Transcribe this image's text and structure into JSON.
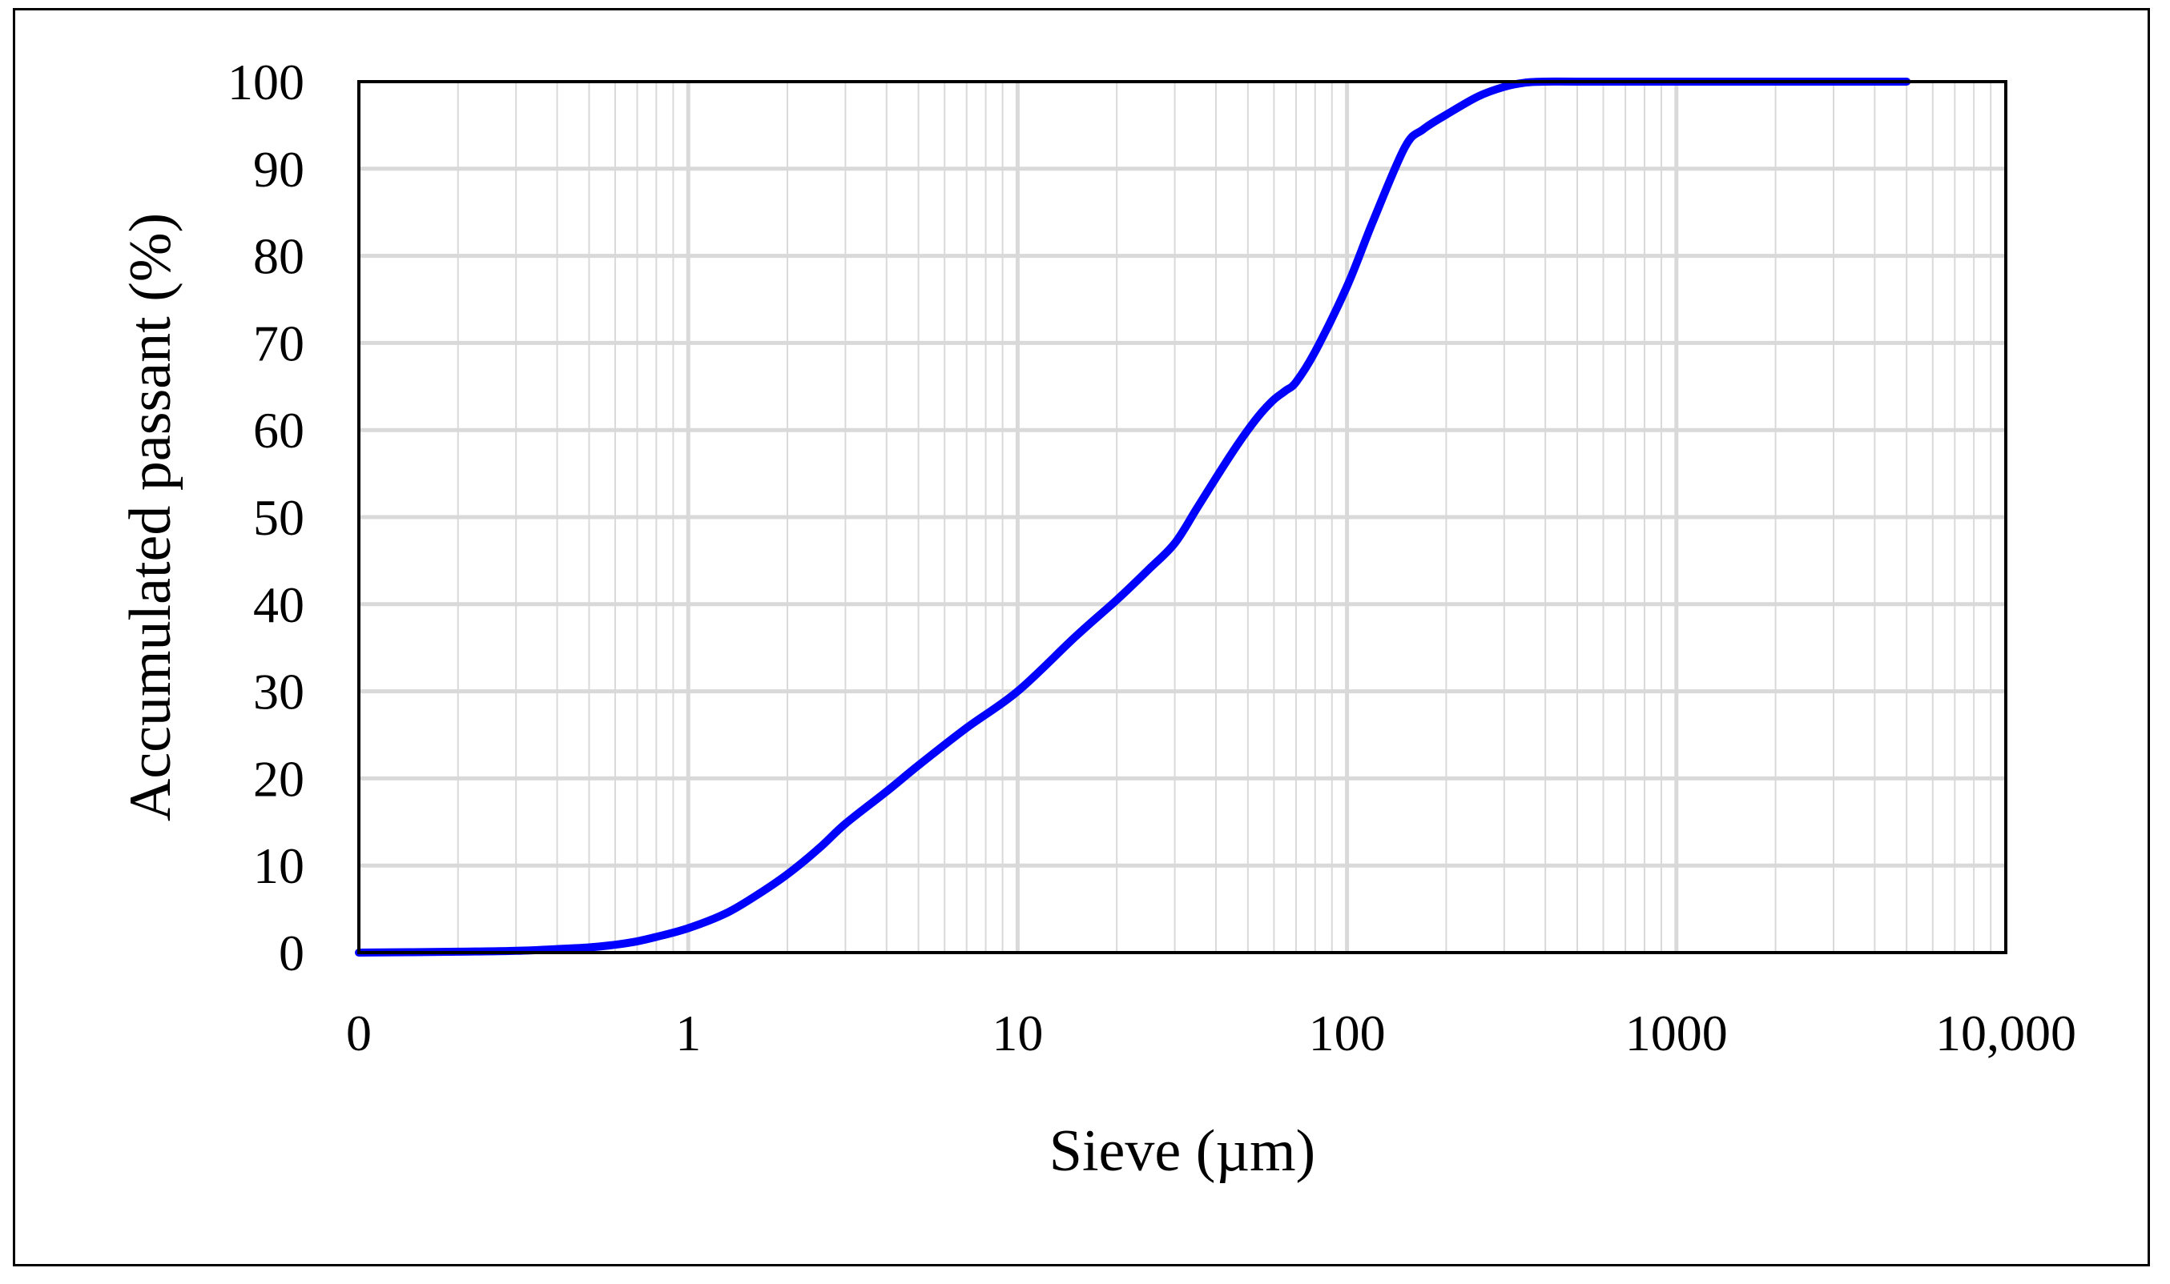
{
  "chart_data": {
    "type": "line",
    "title": "",
    "xlabel": "Sieve (µm)",
    "ylabel": "Accumulated passant (%)",
    "x_scale": "log",
    "xlim": [
      0.1,
      10000
    ],
    "ylim": [
      0,
      100
    ],
    "x_tick_labels": [
      "0",
      "1",
      "10",
      "100",
      "1000",
      "10,000"
    ],
    "y_tick_labels": [
      "0",
      "10",
      "20",
      "30",
      "40",
      "50",
      "60",
      "70",
      "80",
      "90",
      "100"
    ],
    "y_ticks": [
      0,
      10,
      20,
      30,
      40,
      50,
      60,
      70,
      80,
      90,
      100
    ],
    "grid": true,
    "legend": "none",
    "colors": {
      "line": "#0000ff",
      "grid": "#d9d9d9",
      "axis": "#000000"
    },
    "series": [
      {
        "x": [
          0.1,
          0.2,
          0.3,
          0.4,
          0.5,
          0.6,
          0.7,
          0.8,
          1,
          1.3,
          1.6,
          2,
          2.5,
          3,
          4,
          5,
          7,
          10,
          15,
          20,
          25,
          30,
          35,
          40,
          45,
          50,
          55,
          60,
          65,
          70,
          80,
          100,
          120,
          150,
          170,
          200,
          250,
          300,
          350,
          400,
          500,
          1000,
          2000,
          5000
        ],
        "y": [
          0,
          0.1,
          0.2,
          0.4,
          0.6,
          0.9,
          1.3,
          1.8,
          2.8,
          4.5,
          6.5,
          9,
          12,
          14.8,
          18.5,
          21.5,
          25.8,
          30,
          36.3,
          40.5,
          44,
          47,
          51,
          54.5,
          57.5,
          60,
          62,
          63.5,
          64.5,
          65.5,
          69,
          76.5,
          84,
          92.5,
          94.5,
          96.2,
          98.3,
          99.4,
          99.9,
          100,
          100,
          100,
          100,
          100
        ]
      }
    ]
  }
}
